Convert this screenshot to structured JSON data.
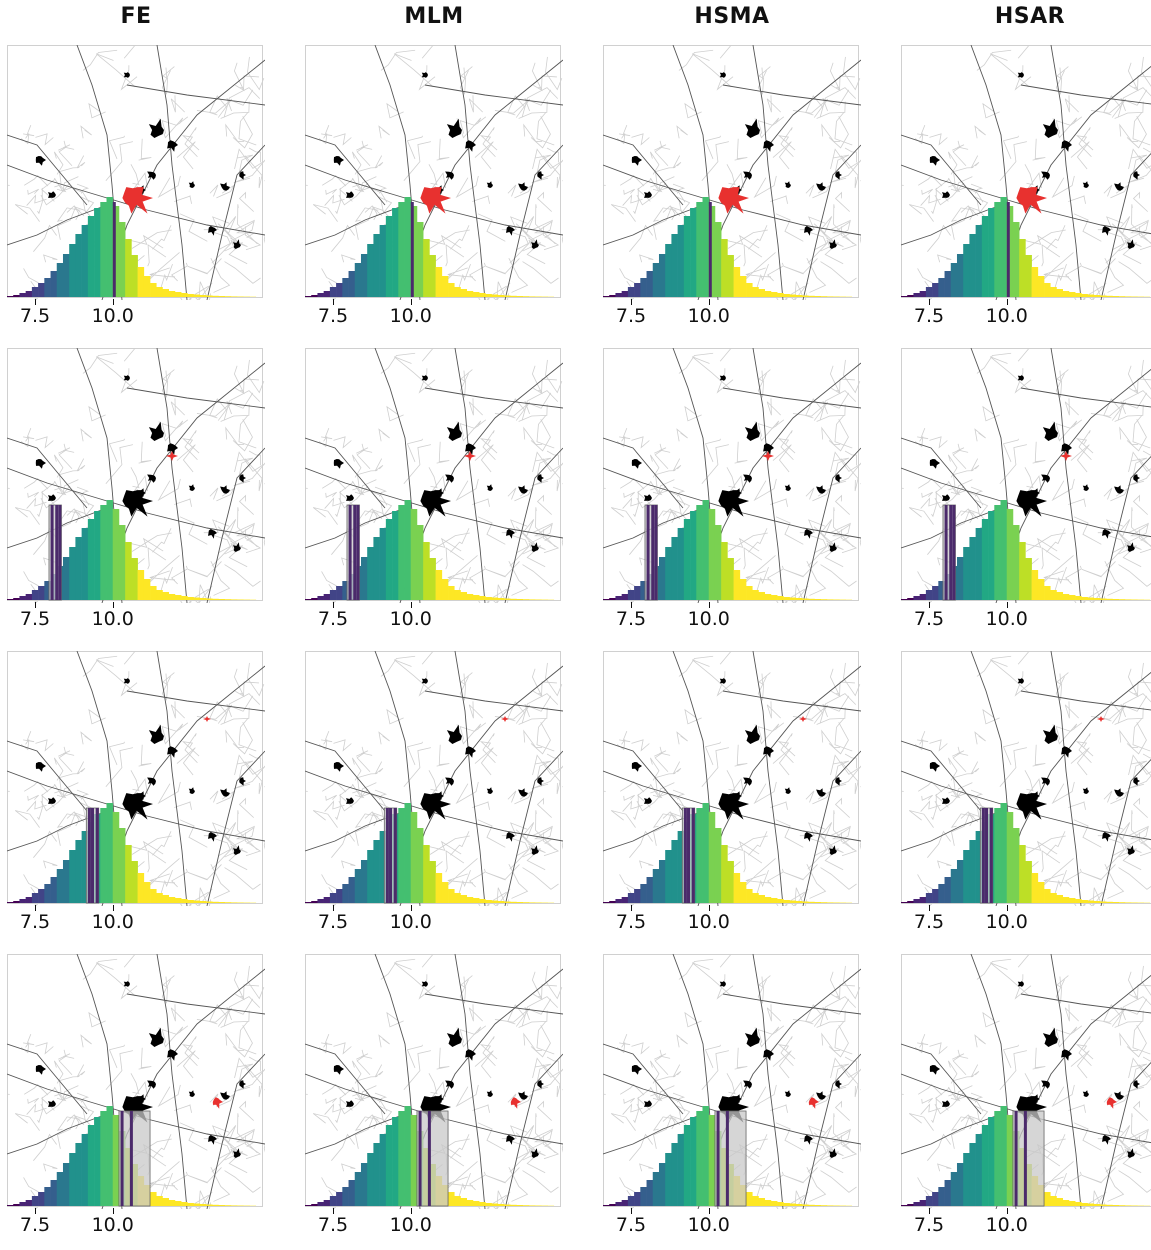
{
  "columns": [
    "FE",
    "MLM",
    "HSMA",
    "HSAR"
  ],
  "x_axis": {
    "tick_labels": [
      "7.5",
      "10.0"
    ],
    "tick_values": [
      7.5,
      10.0
    ],
    "range": [
      6.6,
      14.8
    ]
  },
  "colors": {
    "highlight": "#e8312f",
    "neighborhood": "#000000",
    "roads_minor": "#cfcfcf",
    "roads_major": "#555555",
    "interval_fill": "#c8c8c8",
    "observed_line": "#4b2a6b",
    "frame": "#d0d0d0",
    "colormap": "viridis"
  },
  "chart_data": {
    "type": "histogram-map-grid",
    "rows": [
      {
        "row": 1,
        "observed_values": [
          10.05
        ],
        "interval": null,
        "highlight_region": "central-large"
      },
      {
        "row": 2,
        "observed_values": [
          8.05,
          8.2,
          8.3
        ],
        "interval": [
          7.95,
          8.35
        ],
        "highlight_region": "north-east-small"
      },
      {
        "row": 3,
        "observed_values": [
          9.25,
          9.35,
          9.5
        ],
        "interval": [
          9.15,
          9.55
        ],
        "highlight_region": "far-north-east-tiny"
      },
      {
        "row": 4,
        "observed_values": [
          10.3,
          10.6
        ],
        "interval": [
          10.2,
          11.2
        ],
        "highlight_region": "east-medium"
      }
    ],
    "histogram": {
      "bin_start": 6.6,
      "bin_width": 0.2,
      "heights": [
        0.01,
        0.02,
        0.04,
        0.06,
        0.1,
        0.14,
        0.19,
        0.26,
        0.34,
        0.43,
        0.53,
        0.63,
        0.72,
        0.81,
        0.89,
        0.95,
        1.0,
        0.91,
        0.75,
        0.58,
        0.42,
        0.3,
        0.21,
        0.14,
        0.1,
        0.08,
        0.06,
        0.05,
        0.04,
        0.03,
        0.025,
        0.02,
        0.015,
        0.012,
        0.01,
        0.008,
        0.006,
        0.005,
        0.004,
        0.003
      ]
    }
  }
}
